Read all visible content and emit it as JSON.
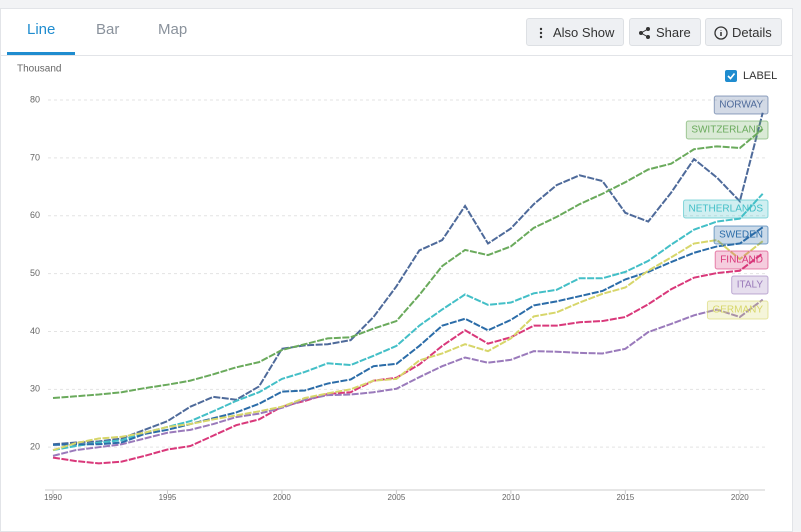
{
  "tabs": [
    "Line",
    "Bar",
    "Map"
  ],
  "buttons": [
    "Also Show",
    "Share",
    "Details"
  ],
  "label_toggle": "LABEL",
  "chart_data": {
    "type": "line",
    "y_unit": "Thousand",
    "x": [
      1990,
      1991,
      1992,
      1993,
      1994,
      1995,
      1996,
      1997,
      1998,
      1999,
      2000,
      2001,
      2002,
      2003,
      2004,
      2005,
      2006,
      2007,
      2008,
      2009,
      2010,
      2011,
      2012,
      2013,
      2014,
      2015,
      2016,
      2017,
      2018,
      2019,
      2020,
      2021
    ],
    "xlim": [
      1990,
      2021.1
    ],
    "xticks": [
      1990,
      1995,
      2000,
      2005,
      2010,
      2015,
      2020
    ],
    "ylim": [
      12.6,
      82.6
    ],
    "yticks": [
      20,
      30,
      40,
      50,
      60,
      70,
      80
    ],
    "grid": true,
    "series": [
      {
        "name": "NORWAY",
        "color": "#4e6a9a",
        "values": [
          20.5,
          20.8,
          21,
          21.5,
          23,
          24.5,
          27,
          28.7,
          28.2,
          30.5,
          37,
          37.6,
          37.8,
          38.5,
          42.5,
          47.8,
          54,
          55.8,
          61.7,
          55.2,
          57.8,
          62,
          65.3,
          67,
          66,
          60.5,
          59,
          64,
          69.8,
          66.6,
          62.5,
          77.8
        ]
      },
      {
        "name": "SWITZERLAND",
        "color": "#6aaa5c",
        "values": [
          28.5,
          28.8,
          29.1,
          29.5,
          30.2,
          30.8,
          31.5,
          32.6,
          33.8,
          34.7,
          36.8,
          37.8,
          38.8,
          39,
          40.5,
          41.8,
          46.3,
          51.3,
          54.1,
          53.2,
          54.7,
          57.9,
          59.8,
          62,
          63.8,
          65.8,
          68,
          69,
          71.5,
          72,
          71.7,
          75
        ]
      },
      {
        "name": "NETHERLANDS",
        "color": "#43bfc7",
        "values": [
          19.5,
          20.2,
          20.8,
          21.2,
          22.5,
          23.5,
          24.5,
          26.2,
          28,
          29.5,
          31.8,
          33,
          34.5,
          34.2,
          35.8,
          37.5,
          41,
          43.8,
          46.4,
          44.6,
          45,
          46.6,
          47.2,
          49.2,
          49.2,
          50.3,
          52.2,
          55,
          57.6,
          59,
          59.5,
          63.8
        ]
      },
      {
        "name": "SWEDEN",
        "color": "#2b6ca8",
        "values": [
          20.4,
          20.5,
          20.5,
          20.8,
          22.3,
          23,
          24,
          25,
          26,
          27.5,
          29.6,
          29.8,
          31,
          31.7,
          34,
          34.4,
          37.5,
          41,
          42.2,
          40.2,
          42,
          44.5,
          45.2,
          46.1,
          47,
          49,
          50.3,
          52,
          53.6,
          54.7,
          55.2,
          58
        ]
      },
      {
        "name": "FINLAND",
        "color": "#d9387a",
        "values": [
          18.2,
          17.6,
          17.2,
          17.5,
          18.5,
          19.6,
          20.2,
          22,
          23.8,
          24.8,
          27,
          28,
          29.2,
          29.5,
          31.5,
          32,
          34.3,
          37.5,
          40.2,
          37.9,
          39,
          41,
          41,
          41.6,
          41.8,
          42.5,
          44.7,
          47.3,
          49.3,
          50.1,
          50.5,
          53.5
        ]
      },
      {
        "name": "ITALY",
        "color": "#9a7abb",
        "values": [
          18.5,
          19.5,
          20,
          20.5,
          21.5,
          22.5,
          23,
          24,
          25.2,
          25.8,
          26.8,
          28.2,
          29,
          29.1,
          29.5,
          30.1,
          32.1,
          34,
          35.5,
          34.6,
          35.1,
          36.6,
          36.5,
          36.3,
          36.2,
          37,
          39.9,
          41.3,
          42.8,
          43.8,
          42.5,
          45.5
        ]
      },
      {
        "name": "GERMANY",
        "color": "#d7d66a",
        "values": [
          19.5,
          20.7,
          21.5,
          21.8,
          22.5,
          23.5,
          24,
          24.8,
          25.5,
          26.2,
          27,
          28.5,
          29.3,
          30,
          31.5,
          31.8,
          35,
          36.2,
          37.8,
          36.6,
          38.8,
          42.6,
          43.3,
          45,
          46.5,
          47.6,
          50.5,
          52.8,
          55.2,
          55.8,
          52.5,
          55.6
        ]
      }
    ]
  }
}
